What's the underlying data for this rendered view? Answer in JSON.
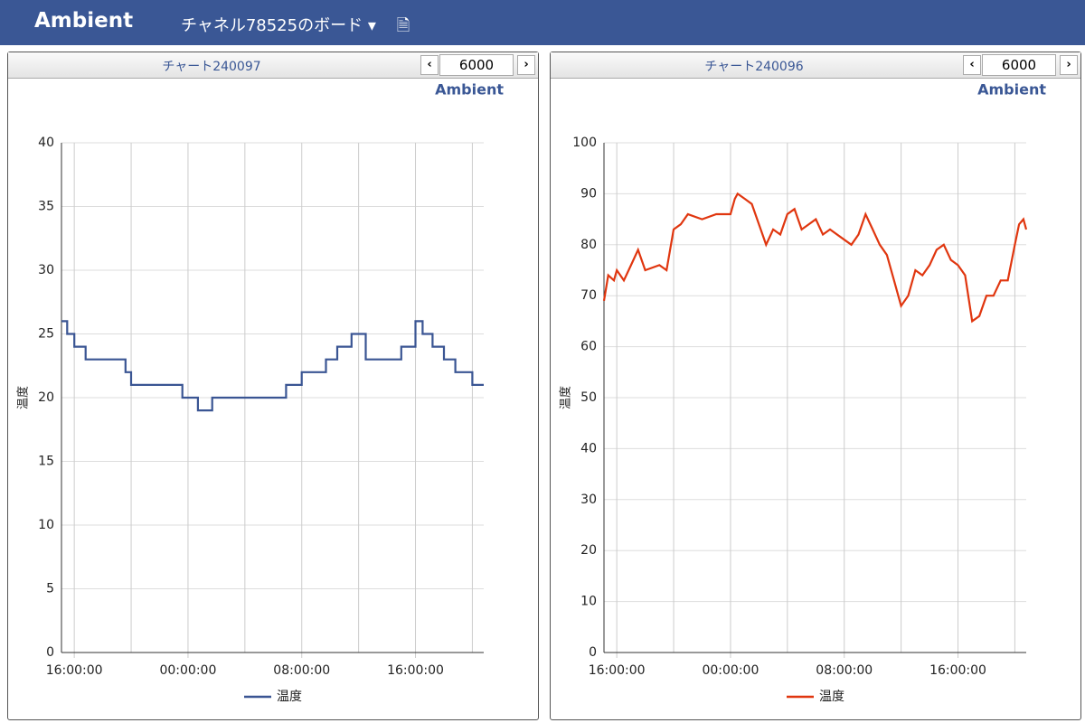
{
  "header": {
    "logo": "Ambient",
    "board_title": "チャネル78525のボード"
  },
  "panels": [
    {
      "title": "チャート240097",
      "limit": 6000
    },
    {
      "title": "チャート240096",
      "limit": 6000
    }
  ],
  "chart_data": [
    {
      "type": "line",
      "credit": "Ambient",
      "y_label": "温度",
      "x": [
        -0.9,
        -0.5,
        -0.5,
        0,
        0,
        0.8,
        0.8,
        3.6,
        3.6,
        4,
        4,
        7.6,
        7.6,
        8.7,
        8.7,
        9.7,
        9.7,
        14.9,
        14.9,
        16,
        16,
        17.7,
        17.7,
        18.5,
        18.5,
        19.5,
        19.5,
        20.5,
        20.5,
        23,
        23,
        24,
        24,
        24.5,
        24.5,
        25.2,
        25.2,
        26,
        26,
        26.8,
        26.8,
        28,
        28,
        28.8
      ],
      "series": [
        {
          "name": "温度",
          "color": "#3a5593",
          "values": [
            26,
            26,
            25,
            25,
            24,
            24,
            23,
            23,
            22,
            22,
            21,
            21,
            20,
            20,
            19,
            19,
            20,
            20,
            21,
            21,
            22,
            22,
            23,
            23,
            24,
            24,
            25,
            25,
            23,
            23,
            24,
            24,
            26,
            26,
            25,
            25,
            24,
            24,
            23,
            23,
            22,
            22,
            21,
            21
          ]
        }
      ],
      "xlim": [
        -0.9,
        28.8
      ],
      "xticks": [
        {
          "value": 0,
          "label": "16:00:00"
        },
        {
          "value": 8,
          "label": "00:00:00"
        },
        {
          "value": 16,
          "label": "08:00:00"
        },
        {
          "value": 24,
          "label": "16:00:00"
        }
      ],
      "x_minor_gridlines": [
        4,
        12,
        20,
        28
      ],
      "ylim": [
        0,
        40
      ],
      "yticks": [
        0,
        5,
        10,
        15,
        20,
        25,
        30,
        35,
        40
      ],
      "grid": true
    },
    {
      "type": "line",
      "credit": "Ambient",
      "y_label": "温度",
      "x": [
        -0.9,
        -0.6,
        -0.2,
        0,
        0.5,
        1,
        1.5,
        2,
        3,
        3.5,
        4,
        4.5,
        5,
        6,
        7,
        8,
        8.3,
        8.5,
        9,
        9.5,
        10,
        10.5,
        11,
        11.5,
        12,
        12.5,
        13,
        14,
        14.5,
        15,
        16,
        16.5,
        17,
        17.5,
        18,
        18.5,
        19,
        19.5,
        20,
        20.5,
        21,
        21.5,
        22,
        22.5,
        23,
        23.5,
        24,
        24.5,
        25,
        25.5,
        26,
        26.5,
        27,
        27.5,
        28,
        28.3,
        28.6,
        28.8
      ],
      "series": [
        {
          "name": "温度",
          "color": "#e0360f",
          "values": [
            69,
            74,
            73,
            75,
            73,
            76,
            79,
            75,
            76,
            75,
            83,
            84,
            86,
            85,
            86,
            86,
            89,
            90,
            89,
            88,
            84,
            80,
            83,
            82,
            86,
            87,
            83,
            85,
            82,
            83,
            81,
            80,
            82,
            86,
            83,
            80,
            78,
            73,
            68,
            70,
            75,
            74,
            76,
            79,
            80,
            77,
            76,
            74,
            65,
            66,
            70,
            70,
            73,
            73,
            80,
            84,
            85,
            83
          ]
        }
      ],
      "xlim": [
        -0.9,
        28.8
      ],
      "xticks": [
        {
          "value": 0,
          "label": "16:00:00"
        },
        {
          "value": 8,
          "label": "00:00:00"
        },
        {
          "value": 16,
          "label": "08:00:00"
        },
        {
          "value": 24,
          "label": "16:00:00"
        }
      ],
      "x_minor_gridlines": [
        4,
        12,
        20,
        28
      ],
      "ylim": [
        0,
        100
      ],
      "yticks": [
        0,
        10,
        20,
        30,
        40,
        50,
        60,
        70,
        80,
        90,
        100
      ],
      "grid": true
    }
  ]
}
